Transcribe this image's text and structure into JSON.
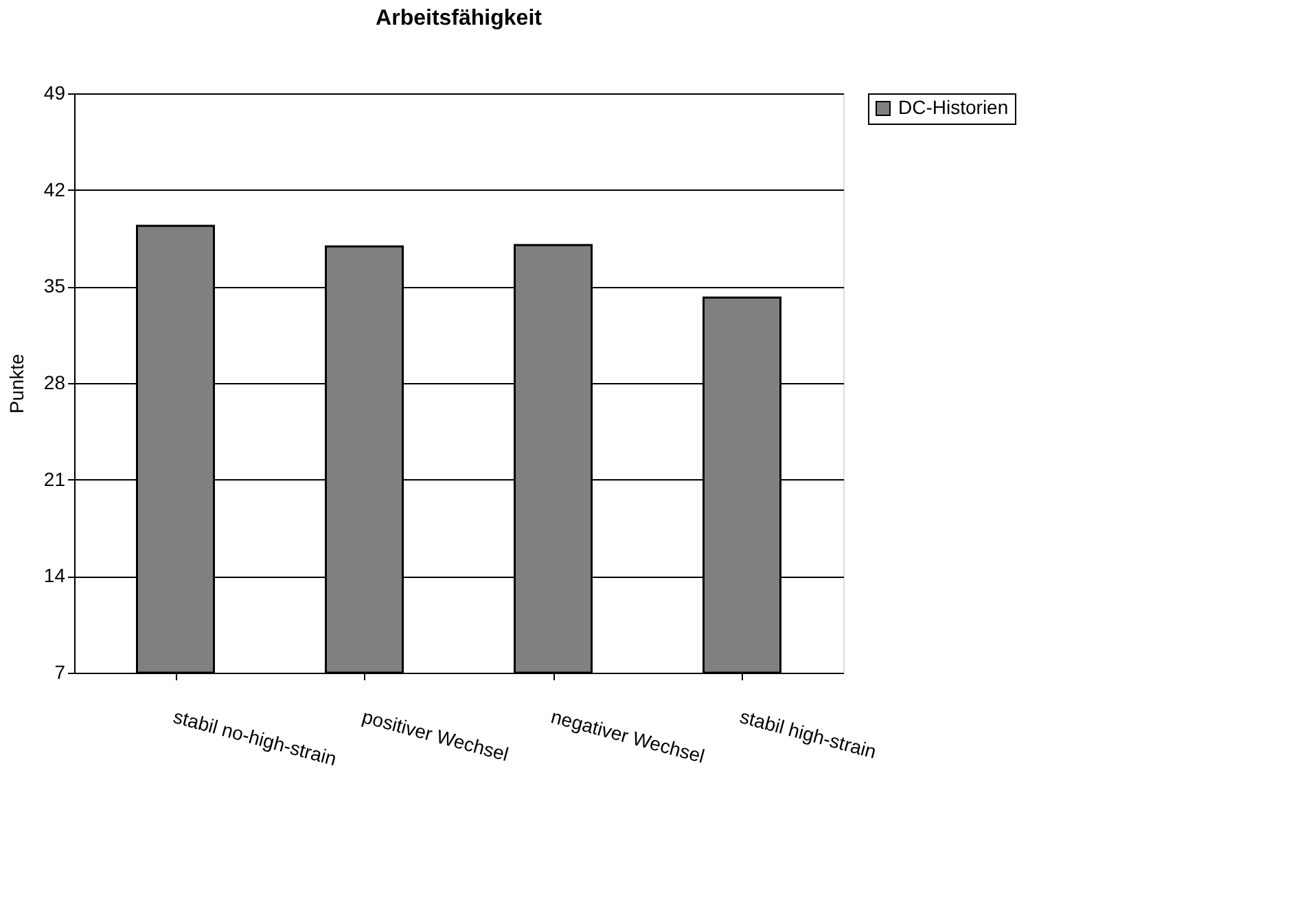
{
  "chart_data": {
    "type": "bar",
    "title": "Arbeitsfähigkeit",
    "ylabel": "Punkte",
    "categories": [
      "stabil no-high-strain",
      "positiver Wechsel",
      "negativer Wechsel",
      "stabil high-strain"
    ],
    "series": [
      {
        "name": "DC-Historien",
        "color": "#808080",
        "values": [
          39.4,
          37.9,
          38.0,
          34.2
        ]
      }
    ],
    "ylim": [
      7,
      49
    ],
    "yticks": [
      7,
      14,
      21,
      28,
      35,
      42,
      49
    ],
    "grid": "y",
    "legend": "right"
  }
}
